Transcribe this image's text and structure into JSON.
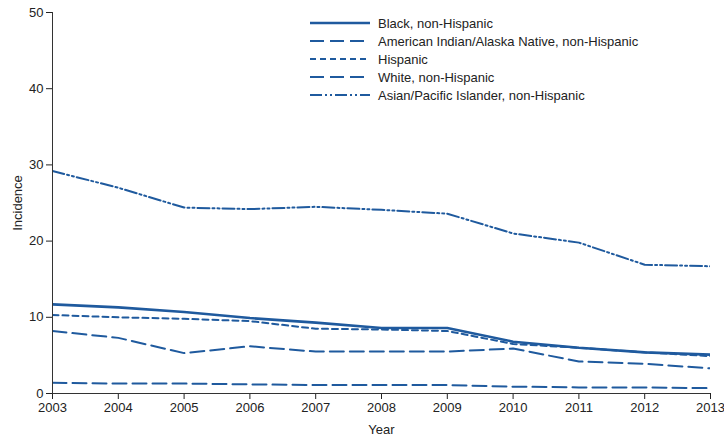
{
  "chart_data": {
    "type": "line",
    "x_label": "Year",
    "y_label": "Incidence",
    "x": [
      2003,
      2004,
      2005,
      2006,
      2007,
      2008,
      2009,
      2010,
      2011,
      2012,
      2013
    ],
    "xlim": [
      2003,
      2013
    ],
    "xticks": [
      2003,
      2004,
      2005,
      2006,
      2007,
      2008,
      2009,
      2010,
      2011,
      2012,
      2013
    ],
    "ylim": [
      0,
      50
    ],
    "yticks": [
      0,
      10,
      20,
      30,
      40,
      50
    ],
    "grid": false,
    "legend": "top-right",
    "series": [
      {
        "name": "Black, non-Hispanic",
        "color": "#1f5a9e",
        "line_style": "solid",
        "values": [
          11.7,
          11.3,
          10.7,
          9.9,
          9.3,
          8.6,
          8.6,
          6.8,
          6.0,
          5.4,
          5.1
        ]
      },
      {
        "name": "American Indian/Alaska Native, non-Hispanic",
        "color": "#1f5a9e",
        "line_style": "longdash",
        "values": [
          8.2,
          7.3,
          5.3,
          6.2,
          5.5,
          5.5,
          5.5,
          5.9,
          4.2,
          3.9,
          3.3
        ]
      },
      {
        "name": "Hispanic",
        "color": "#1f5a9e",
        "line_style": "dash",
        "values": [
          10.3,
          10.0,
          9.8,
          9.5,
          8.5,
          8.4,
          8.2,
          6.5,
          6.0,
          5.4,
          4.9
        ]
      },
      {
        "name": "White, non-Hispanic",
        "color": "#1f5a9e",
        "line_style": "longdash",
        "values": [
          1.4,
          1.3,
          1.3,
          1.2,
          1.1,
          1.1,
          1.1,
          0.9,
          0.8,
          0.8,
          0.7
        ]
      },
      {
        "name": "Asian/Pacific Islander, non-Hispanic",
        "color": "#1f5a9e",
        "line_style": "dashdotdot",
        "values": [
          29.2,
          27.0,
          24.4,
          24.2,
          24.5,
          24.1,
          23.6,
          21.0,
          19.8,
          16.9,
          16.7
        ]
      }
    ]
  }
}
